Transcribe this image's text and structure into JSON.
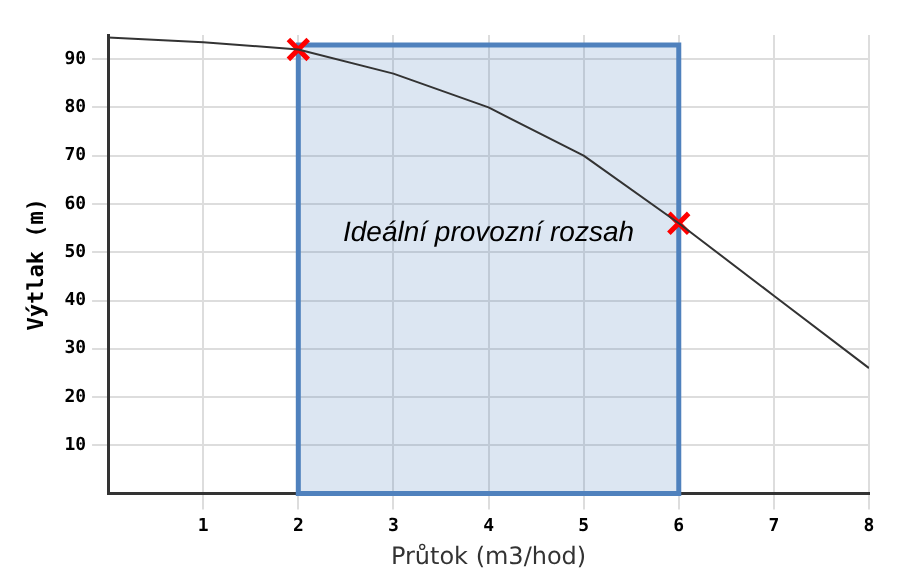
{
  "chart_data": {
    "type": "line",
    "xlabel": "Průtok (m3/hod)",
    "ylabel": "Výtlak (m)",
    "xlim": [
      0,
      8
    ],
    "ylim": [
      0,
      95
    ],
    "xticks": [
      1,
      2,
      3,
      4,
      5,
      6,
      7,
      8
    ],
    "yticks": [
      10,
      20,
      30,
      40,
      50,
      60,
      70,
      80,
      90
    ],
    "grid": true,
    "legend": false,
    "marker": "none",
    "line_style": "solid",
    "series": [
      {
        "type": "line",
        "color": "#333333",
        "x": [
          0,
          1,
          2,
          3,
          4,
          5,
          6,
          7,
          8
        ],
        "values": [
          94.5,
          93.5,
          92,
          87,
          80,
          70,
          56,
          41,
          26
        ]
      },
      {
        "type": "scatter",
        "marker": "cross",
        "color": "#ff0000",
        "x": [
          2,
          6
        ],
        "values": [
          92,
          56
        ]
      }
    ],
    "bands": [
      {
        "axis": "x",
        "from": 2,
        "to": 6,
        "label": "Ideální provozní rozsah",
        "color": "#4f81bd"
      }
    ]
  }
}
